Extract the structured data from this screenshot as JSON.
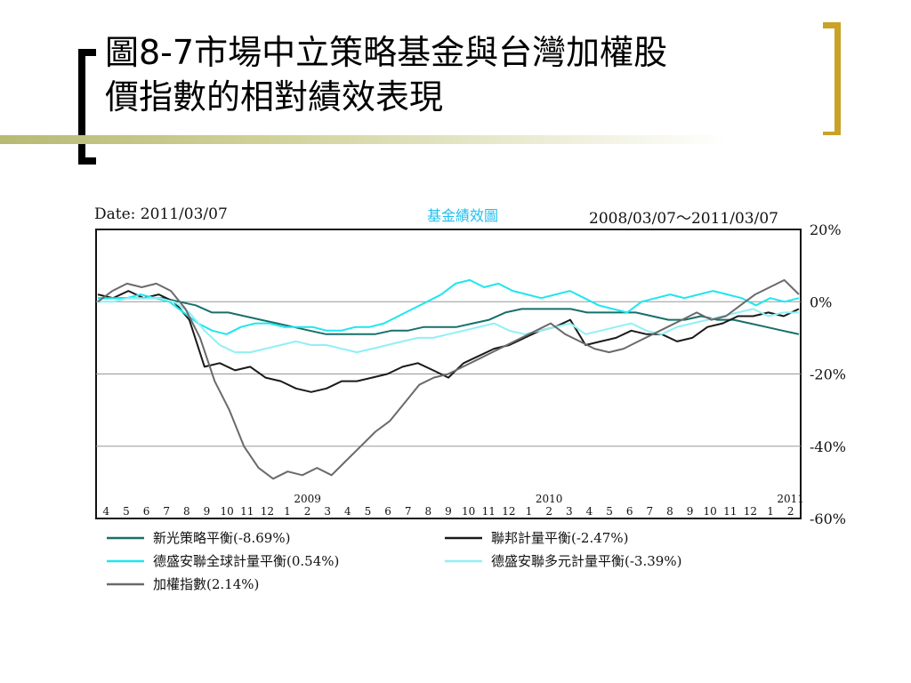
{
  "slide": {
    "title_line1": "圖8-7市場中立策略基金與台灣加權股",
    "title_line2": "價指數的相對績效表現"
  },
  "chart_header": {
    "date_label": "Date: 2011/03/07",
    "center_title": "基金績效圖",
    "range_label": "2008/03/07～2011/03/07"
  },
  "colors": {
    "xinguang": "#17706a",
    "lianbang": "#1a1a1a",
    "desheng_global": "#1ee6f0",
    "desheng_multi": "#8ff0f6",
    "taiex": "#6a6a6a",
    "right_bracket": "#c9a227"
  },
  "chart_data": {
    "type": "line",
    "ylabel": "",
    "ylim": [
      -60,
      20
    ],
    "y_ticks": [
      20,
      0,
      -20,
      -40,
      -60
    ],
    "y_tick_labels": [
      "20%",
      "0%",
      "-20%",
      "-40%",
      "-60%"
    ],
    "x_month_labels": [
      "4",
      "5",
      "6",
      "7",
      "8",
      "9",
      "10",
      "11",
      "12",
      "1",
      "2",
      "3",
      "4",
      "5",
      "6",
      "7",
      "8",
      "9",
      "10",
      "11",
      "12",
      "1",
      "2",
      "3",
      "4",
      "5",
      "6",
      "7",
      "8",
      "9",
      "10",
      "11",
      "12",
      "1",
      "2"
    ],
    "x_year_labels": [
      {
        "index": 10,
        "label": "2009"
      },
      {
        "index": 22,
        "label": "2010"
      },
      {
        "index": 34,
        "label": "2011"
      }
    ],
    "series": [
      {
        "name": "新光策略平衡(-8.69%)",
        "color_key": "xinguang",
        "values": [
          1,
          1,
          1,
          1,
          1,
          0,
          -1,
          -3,
          -3,
          -4,
          -5,
          -6,
          -7,
          -8,
          -9,
          -9,
          -9,
          -9,
          -8,
          -8,
          -7,
          -7,
          -7,
          -6,
          -5,
          -3,
          -2,
          -2,
          -2,
          -2,
          -3,
          -3,
          -3,
          -3,
          -4,
          -5,
          -5,
          -4,
          -5,
          -5,
          -6,
          -7,
          -8,
          -9
        ]
      },
      {
        "name": "聯邦計量平衡(-2.47%)",
        "color_key": "lianbang",
        "values": [
          2,
          1,
          3,
          1,
          2,
          0,
          -5,
          -18,
          -17,
          -19,
          -18,
          -21,
          -22,
          -24,
          -25,
          -24,
          -22,
          -22,
          -21,
          -20,
          -18,
          -17,
          -19,
          -21,
          -17,
          -15,
          -13,
          -12,
          -10,
          -8,
          -7,
          -5,
          -12,
          -11,
          -10,
          -8,
          -9,
          -9,
          -11,
          -10,
          -7,
          -6,
          -4,
          -4,
          -3,
          -4,
          -2
        ]
      },
      {
        "name": "德盛安聯全球計量平衡(0.54%)",
        "color_key": "desheng_global",
        "values": [
          1,
          1,
          1,
          2,
          1,
          0,
          -3,
          -6,
          -8,
          -9,
          -7,
          -6,
          -6,
          -7,
          -7,
          -7,
          -8,
          -8,
          -7,
          -7,
          -6,
          -4,
          -2,
          0,
          2,
          5,
          6,
          4,
          5,
          3,
          2,
          1,
          2,
          3,
          1,
          -1,
          -2,
          -3,
          0,
          1,
          2,
          1,
          2,
          3,
          2,
          1,
          -1,
          1,
          0,
          1
        ]
      },
      {
        "name": "德盛安聯多元計量平衡(-3.39%)",
        "color_key": "desheng_multi",
        "values": [
          0,
          0,
          1,
          1,
          1,
          0,
          -3,
          -8,
          -12,
          -14,
          -14,
          -13,
          -12,
          -11,
          -12,
          -12,
          -13,
          -14,
          -13,
          -12,
          -11,
          -10,
          -10,
          -9,
          -8,
          -7,
          -6,
          -8,
          -9,
          -8,
          -7,
          -6,
          -9,
          -8,
          -7,
          -6,
          -8,
          -9,
          -7,
          -6,
          -5,
          -4,
          -3,
          -2,
          -4,
          -3,
          -3
        ]
      },
      {
        "name": "加權指數(2.14%)",
        "color_key": "taiex",
        "values": [
          0,
          3,
          5,
          4,
          5,
          3,
          -2,
          -10,
          -22,
          -30,
          -40,
          -46,
          -49,
          -47,
          -48,
          -46,
          -48,
          -44,
          -40,
          -36,
          -33,
          -28,
          -23,
          -21,
          -20,
          -18,
          -16,
          -14,
          -12,
          -10,
          -8,
          -6,
          -9,
          -11,
          -13,
          -14,
          -13,
          -11,
          -9,
          -7,
          -5,
          -3,
          -5,
          -4,
          -1,
          2,
          4,
          6,
          2
        ]
      }
    ]
  }
}
